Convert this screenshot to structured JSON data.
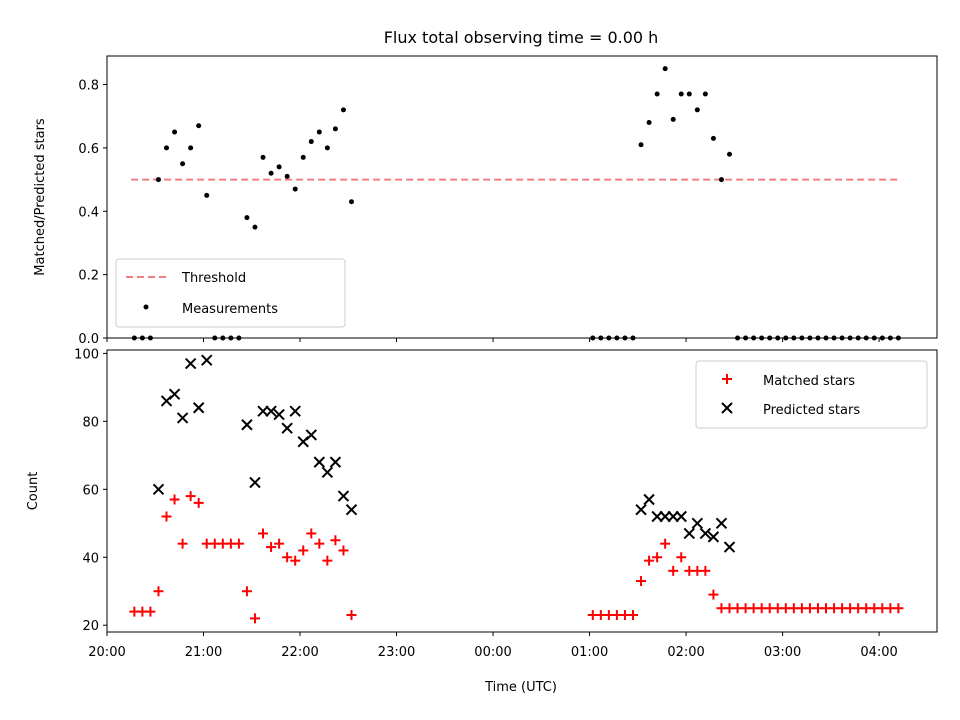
{
  "chart_data": [
    {
      "type": "scatter",
      "title": "Flux total observing time = 0.00 h",
      "ylabel": "Matched/Predicted stars",
      "ylim": [
        0,
        0.89
      ],
      "yticks": [
        0.0,
        0.2,
        0.4,
        0.6,
        0.8
      ],
      "legend_position": "lower-left",
      "threshold": {
        "name": "Threshold",
        "value": 0.5,
        "x_start": "20:15",
        "x_end": "04:12",
        "color": "#f08080"
      },
      "series": [
        {
          "name": "Measurements",
          "color": "#000000",
          "x": [
            "20:17",
            "20:22",
            "20:27",
            "20:32",
            "20:37",
            "20:42",
            "20:47",
            "20:52",
            "20:57",
            "21:02",
            "21:07",
            "21:12",
            "21:17",
            "21:22",
            "21:27",
            "21:32",
            "21:37",
            "21:42",
            "21:47",
            "21:52",
            "21:57",
            "22:02",
            "22:07",
            "22:12",
            "22:17",
            "22:22",
            "22:27",
            "22:32",
            "01:02",
            "01:07",
            "01:12",
            "01:17",
            "01:22",
            "01:27",
            "01:32",
            "01:37",
            "01:42",
            "01:47",
            "01:52",
            "01:57",
            "02:02",
            "02:07",
            "02:12",
            "02:17",
            "02:22",
            "02:27",
            "02:32",
            "02:37",
            "02:42",
            "02:47",
            "02:52",
            "02:57",
            "03:02",
            "03:07",
            "03:12",
            "03:17",
            "03:22",
            "03:27",
            "03:32",
            "03:37",
            "03:42",
            "03:47",
            "03:52",
            "03:57",
            "04:02",
            "04:07",
            "04:12"
          ],
          "y": [
            0,
            0,
            0,
            0.5,
            0.6,
            0.65,
            0.55,
            0.6,
            0.67,
            0.45,
            0,
            0,
            0,
            0,
            0.38,
            0.35,
            0.57,
            0.52,
            0.54,
            0.51,
            0.47,
            0.57,
            0.62,
            0.65,
            0.6,
            0.66,
            0.72,
            0.43,
            0,
            0,
            0,
            0,
            0,
            0,
            0.61,
            0.68,
            0.77,
            0.85,
            0.69,
            0.77,
            0.77,
            0.72,
            0.77,
            0.63,
            0.5,
            0.58,
            0,
            0,
            0,
            0,
            0,
            0,
            0,
            0,
            0,
            0,
            0,
            0,
            0,
            0,
            0,
            0,
            0,
            0,
            0,
            0,
            0
          ]
        }
      ]
    },
    {
      "type": "scatter",
      "xlabel": "Time (UTC)",
      "ylabel": "Count",
      "ylim": [
        18,
        101
      ],
      "yticks": [
        20,
        40,
        60,
        80,
        100
      ],
      "xticks": [
        "20:00",
        "21:00",
        "22:00",
        "23:00",
        "00:00",
        "01:00",
        "02:00",
        "03:00",
        "04:00"
      ],
      "legend_position": "upper-right",
      "series": [
        {
          "name": "Matched stars",
          "marker": "plus",
          "color": "#ff0000",
          "x": [
            "20:17",
            "20:22",
            "20:27",
            "20:32",
            "20:37",
            "20:42",
            "20:47",
            "20:52",
            "20:57",
            "21:02",
            "21:07",
            "21:12",
            "21:17",
            "21:22",
            "21:27",
            "21:32",
            "21:37",
            "21:42",
            "21:47",
            "21:52",
            "21:57",
            "22:02",
            "22:07",
            "22:12",
            "22:17",
            "22:22",
            "22:27",
            "22:32",
            "01:02",
            "01:07",
            "01:12",
            "01:17",
            "01:22",
            "01:27",
            "01:32",
            "01:37",
            "01:42",
            "01:47",
            "01:52",
            "01:57",
            "02:02",
            "02:07",
            "02:12",
            "02:17",
            "02:22",
            "02:27",
            "02:32",
            "02:37",
            "02:42",
            "02:47",
            "02:52",
            "02:57",
            "03:02",
            "03:07",
            "03:12",
            "03:17",
            "03:22",
            "03:27",
            "03:32",
            "03:37",
            "03:42",
            "03:47",
            "03:52",
            "03:57",
            "04:02",
            "04:07",
            "04:12"
          ],
          "y": [
            24,
            24,
            24,
            30,
            52,
            57,
            44,
            58,
            56,
            44,
            44,
            44,
            44,
            44,
            30,
            22,
            47,
            43,
            44,
            40,
            39,
            42,
            47,
            44,
            39,
            45,
            42,
            23,
            23,
            23,
            23,
            23,
            23,
            23,
            33,
            39,
            40,
            44,
            36,
            40,
            36,
            36,
            36,
            29,
            25,
            25,
            25,
            25,
            25,
            25,
            25,
            25,
            25,
            25,
            25,
            25,
            25,
            25,
            25,
            25,
            25,
            25,
            25,
            25,
            25,
            25,
            25
          ]
        },
        {
          "name": "Predicted stars",
          "marker": "x",
          "color": "#000000",
          "x": [
            "20:32",
            "20:37",
            "20:42",
            "20:47",
            "20:52",
            "20:57",
            "21:02",
            "21:27",
            "21:32",
            "21:37",
            "21:42",
            "21:47",
            "21:52",
            "21:57",
            "22:02",
            "22:07",
            "22:12",
            "22:17",
            "22:22",
            "22:27",
            "22:32",
            "01:32",
            "01:37",
            "01:42",
            "01:47",
            "01:52",
            "01:57",
            "02:02",
            "02:07",
            "02:12",
            "02:17",
            "02:22",
            "02:27"
          ],
          "y": [
            60,
            86,
            88,
            81,
            97,
            84,
            98,
            79,
            62,
            83,
            83,
            82,
            78,
            83,
            74,
            76,
            68,
            65,
            68,
            58,
            54,
            54,
            57,
            52,
            52,
            52,
            52,
            47,
            50,
            47,
            46,
            50,
            43
          ]
        }
      ]
    }
  ]
}
